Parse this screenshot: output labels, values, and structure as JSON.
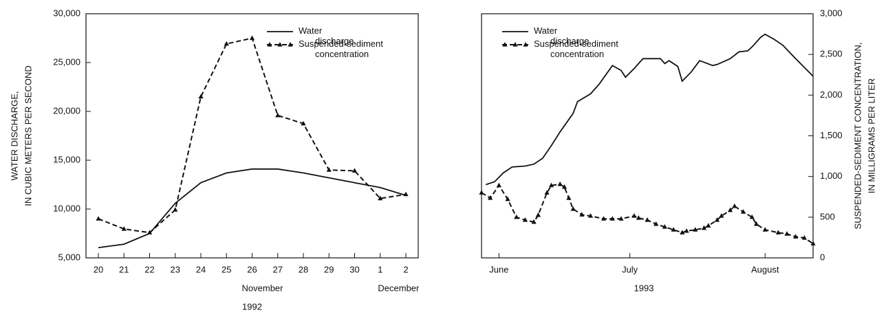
{
  "chart_data": [
    {
      "type": "line",
      "categories": [
        "20",
        "21",
        "22",
        "23",
        "24",
        "25",
        "26",
        "27",
        "28",
        "29",
        "30",
        "1",
        "2"
      ],
      "x_group_labels": [
        "November",
        "December"
      ],
      "x_title": "1992",
      "y_title": [
        "WATER DISCHARGE,",
        "IN CUBIC METERS PER SECOND"
      ],
      "ylim": [
        5000,
        30000
      ],
      "yticks": [
        {
          "value": 5000,
          "label": "5,000"
        },
        {
          "value": 10000,
          "label": "10,000"
        },
        {
          "value": 15000,
          "label": "15,000"
        },
        {
          "value": 20000,
          "label": "20,000"
        },
        {
          "value": 25000,
          "label": "25,000"
        },
        {
          "value": 30000,
          "label": "30,000"
        }
      ],
      "y2lim": [
        0,
        3000
      ],
      "legend": "upper right",
      "series": [
        {
          "name": "Water discharge",
          "color": "#111111",
          "style": "solid",
          "values": [
            6050,
            6400,
            7500,
            10600,
            12700,
            13700,
            14100,
            14100,
            13700,
            13200,
            12700,
            12200,
            11400
          ]
        },
        {
          "name": "Suspended-sediment concentration",
          "color": "#111111",
          "style": "dashed",
          "marker": "triangle",
          "axis": "y2",
          "values": [
            480,
            355,
            310,
            590,
            1980,
            2630,
            2700,
            1750,
            1650,
            1080,
            1070,
            730,
            780
          ]
        }
      ]
    },
    {
      "type": "line",
      "x_title": "1993",
      "xlim": [
        148,
        224
      ],
      "xticks": [
        {
          "value": 152,
          "label": "June"
        },
        {
          "value": 182,
          "label": "July"
        },
        {
          "value": 213,
          "label": "August"
        }
      ],
      "ylim": [
        5000,
        30000
      ],
      "y2lim": [
        0,
        3000
      ],
      "y2ticks": [
        {
          "value": 0,
          "label": "0"
        },
        {
          "value": 500,
          "label": "500"
        },
        {
          "value": 1000,
          "label": "1,000"
        },
        {
          "value": 1500,
          "label": "1,500"
        },
        {
          "value": 2000,
          "label": "2,000"
        },
        {
          "value": 2500,
          "label": "2,500"
        },
        {
          "value": 3000,
          "label": "3,000"
        }
      ],
      "y2_title": [
        "SUSPENDED-SEDIMENT CONCENTRATION,",
        "IN MILLIGRAMS PER LITER"
      ],
      "legend": "upper left",
      "series": [
        {
          "name": "Water discharge",
          "color": "#111111",
          "style": "solid",
          "x": [
            149,
            151,
            153,
            155,
            158,
            160,
            162,
            164,
            166,
            169,
            170,
            173,
            175,
            178,
            180,
            181,
            183,
            185,
            187,
            189,
            190,
            191,
            193,
            194,
            196,
            198,
            201,
            202,
            205,
            207,
            209,
            210,
            212,
            213,
            215,
            217,
            220,
            224
          ],
          "values": [
            12500,
            12800,
            13700,
            14300,
            14400,
            14600,
            15200,
            16500,
            17900,
            19800,
            21000,
            21800,
            22800,
            24700,
            24200,
            23500,
            24400,
            25400,
            25400,
            25400,
            24900,
            25200,
            24600,
            23100,
            24000,
            25200,
            24700,
            24800,
            25400,
            26100,
            26200,
            26600,
            27600,
            27900,
            27400,
            26800,
            25400,
            23600
          ]
        },
        {
          "name": "Suspended-sediment concentration",
          "color": "#111111",
          "style": "dashed",
          "marker": "triangle",
          "axis": "y2",
          "x": [
            148,
            150,
            152,
            154,
            156,
            158,
            160,
            161,
            163,
            164,
            166,
            167,
            168,
            169,
            171,
            173,
            176,
            178,
            180,
            183,
            184,
            186,
            188,
            190,
            192,
            194,
            195,
            197,
            199,
            200,
            202,
            203,
            205,
            206,
            208,
            210,
            211,
            213,
            216,
            218,
            220,
            222,
            224
          ],
          "values": [
            800,
            735,
            890,
            720,
            500,
            465,
            440,
            525,
            800,
            890,
            905,
            870,
            735,
            600,
            530,
            515,
            480,
            480,
            480,
            515,
            490,
            465,
            415,
            380,
            345,
            310,
            330,
            345,
            365,
            395,
            465,
            515,
            585,
            635,
            565,
            500,
            415,
            345,
            310,
            295,
            260,
            245,
            175
          ]
        }
      ]
    }
  ]
}
